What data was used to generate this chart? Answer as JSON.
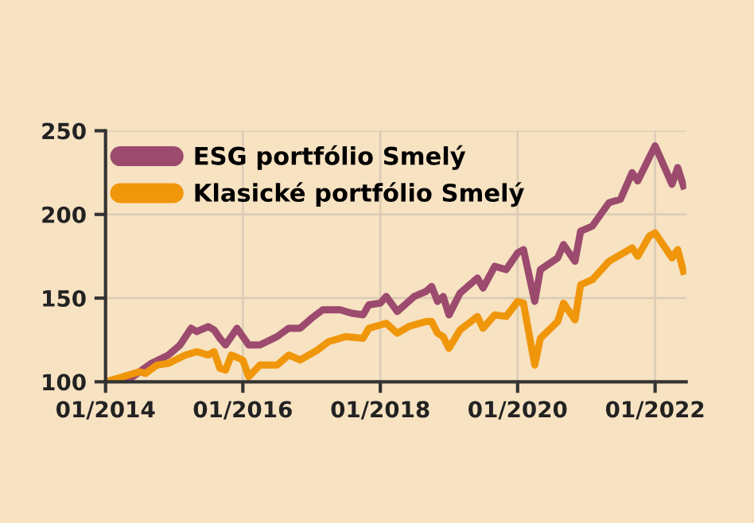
{
  "chart_data": {
    "type": "line",
    "xlim": [
      "2014-01",
      "2022-06-15"
    ],
    "ylim": [
      100,
      250
    ],
    "xticks": [
      {
        "value": "2014-01",
        "label": "01/2014"
      },
      {
        "value": "2016-01",
        "label": "01/2016"
      },
      {
        "value": "2018-01",
        "label": "01/2018"
      },
      {
        "value": "2020-01",
        "label": "01/2020"
      },
      {
        "value": "2022-01",
        "label": "01/2022"
      }
    ],
    "yticks": [
      100,
      150,
      200,
      250
    ],
    "grid": true,
    "legend": "top left",
    "line_style": "solid",
    "marker": "none",
    "series": [
      {
        "name": "ESG portfólio Smelý",
        "color": "#9c4a6e",
        "x": [
          "2014-01",
          "2014-05",
          "2014-07",
          "2014-09",
          "2014-12",
          "2015-02",
          "2015-04",
          "2015-05",
          "2015-07",
          "2015-08",
          "2015-09",
          "2015-10",
          "2015-12",
          "2016-02",
          "2016-04",
          "2016-07",
          "2016-09",
          "2016-11",
          "2017-01",
          "2017-03",
          "2017-06",
          "2017-08",
          "2017-10",
          "2017-11",
          "2018-01",
          "2018-02",
          "2018-04",
          "2018-07",
          "2018-09",
          "2018-10",
          "2018-11",
          "2018-12",
          "2019-01",
          "2019-03",
          "2019-06",
          "2019-07",
          "2019-09",
          "2019-11",
          "2020-01",
          "2020-02",
          "2020-04",
          "2020-05",
          "2020-08",
          "2020-09",
          "2020-11",
          "2020-12",
          "2021-02",
          "2021-05",
          "2021-07",
          "2021-09",
          "2021-10",
          "2021-12",
          "2022-01",
          "2022-04",
          "2022-05",
          "2022-06"
        ],
        "values": [
          100,
          101,
          106,
          111,
          116,
          122,
          132,
          130,
          133,
          131,
          126,
          122,
          132,
          122,
          122,
          127,
          132,
          132,
          138,
          143,
          143,
          141,
          140,
          146,
          147,
          151,
          142,
          151,
          154,
          157,
          148,
          151,
          140,
          153,
          162,
          156,
          169,
          167,
          177,
          179,
          148,
          167,
          174,
          182,
          172,
          190,
          193,
          207,
          209,
          225,
          220,
          234,
          241,
          218,
          228,
          217
        ]
      },
      {
        "name": "Klasické portfólio Smelý",
        "color": "#f0960a",
        "x": [
          "2014-01",
          "2014-07",
          "2014-08",
          "2014-10",
          "2014-12",
          "2015-03",
          "2015-05",
          "2015-07",
          "2015-08",
          "2015-09",
          "2015-10",
          "2015-11",
          "2016-01",
          "2016-02",
          "2016-04",
          "2016-07",
          "2016-09",
          "2016-11",
          "2017-02",
          "2017-04",
          "2017-07",
          "2017-10",
          "2017-11",
          "2018-02",
          "2018-04",
          "2018-06",
          "2018-09",
          "2018-10",
          "2018-11",
          "2018-12",
          "2019-01",
          "2019-03",
          "2019-06",
          "2019-07",
          "2019-09",
          "2019-11",
          "2020-01",
          "2020-02",
          "2020-04",
          "2020-05",
          "2020-08",
          "2020-09",
          "2020-11",
          "2020-12",
          "2021-02",
          "2021-05",
          "2021-09",
          "2021-10",
          "2021-12",
          "2022-01",
          "2022-04",
          "2022-05",
          "2022-06"
        ],
        "values": [
          100,
          106,
          105,
          110,
          111,
          116,
          118,
          116,
          118,
          108,
          107,
          116,
          113,
          103,
          110,
          110,
          116,
          113,
          119,
          124,
          127,
          126,
          132,
          135,
          129,
          133,
          136,
          136,
          129,
          127,
          120,
          131,
          139,
          132,
          140,
          139,
          148,
          147,
          110,
          126,
          136,
          147,
          137,
          158,
          161,
          172,
          180,
          175,
          187,
          189,
          174,
          179,
          166
        ]
      }
    ]
  }
}
